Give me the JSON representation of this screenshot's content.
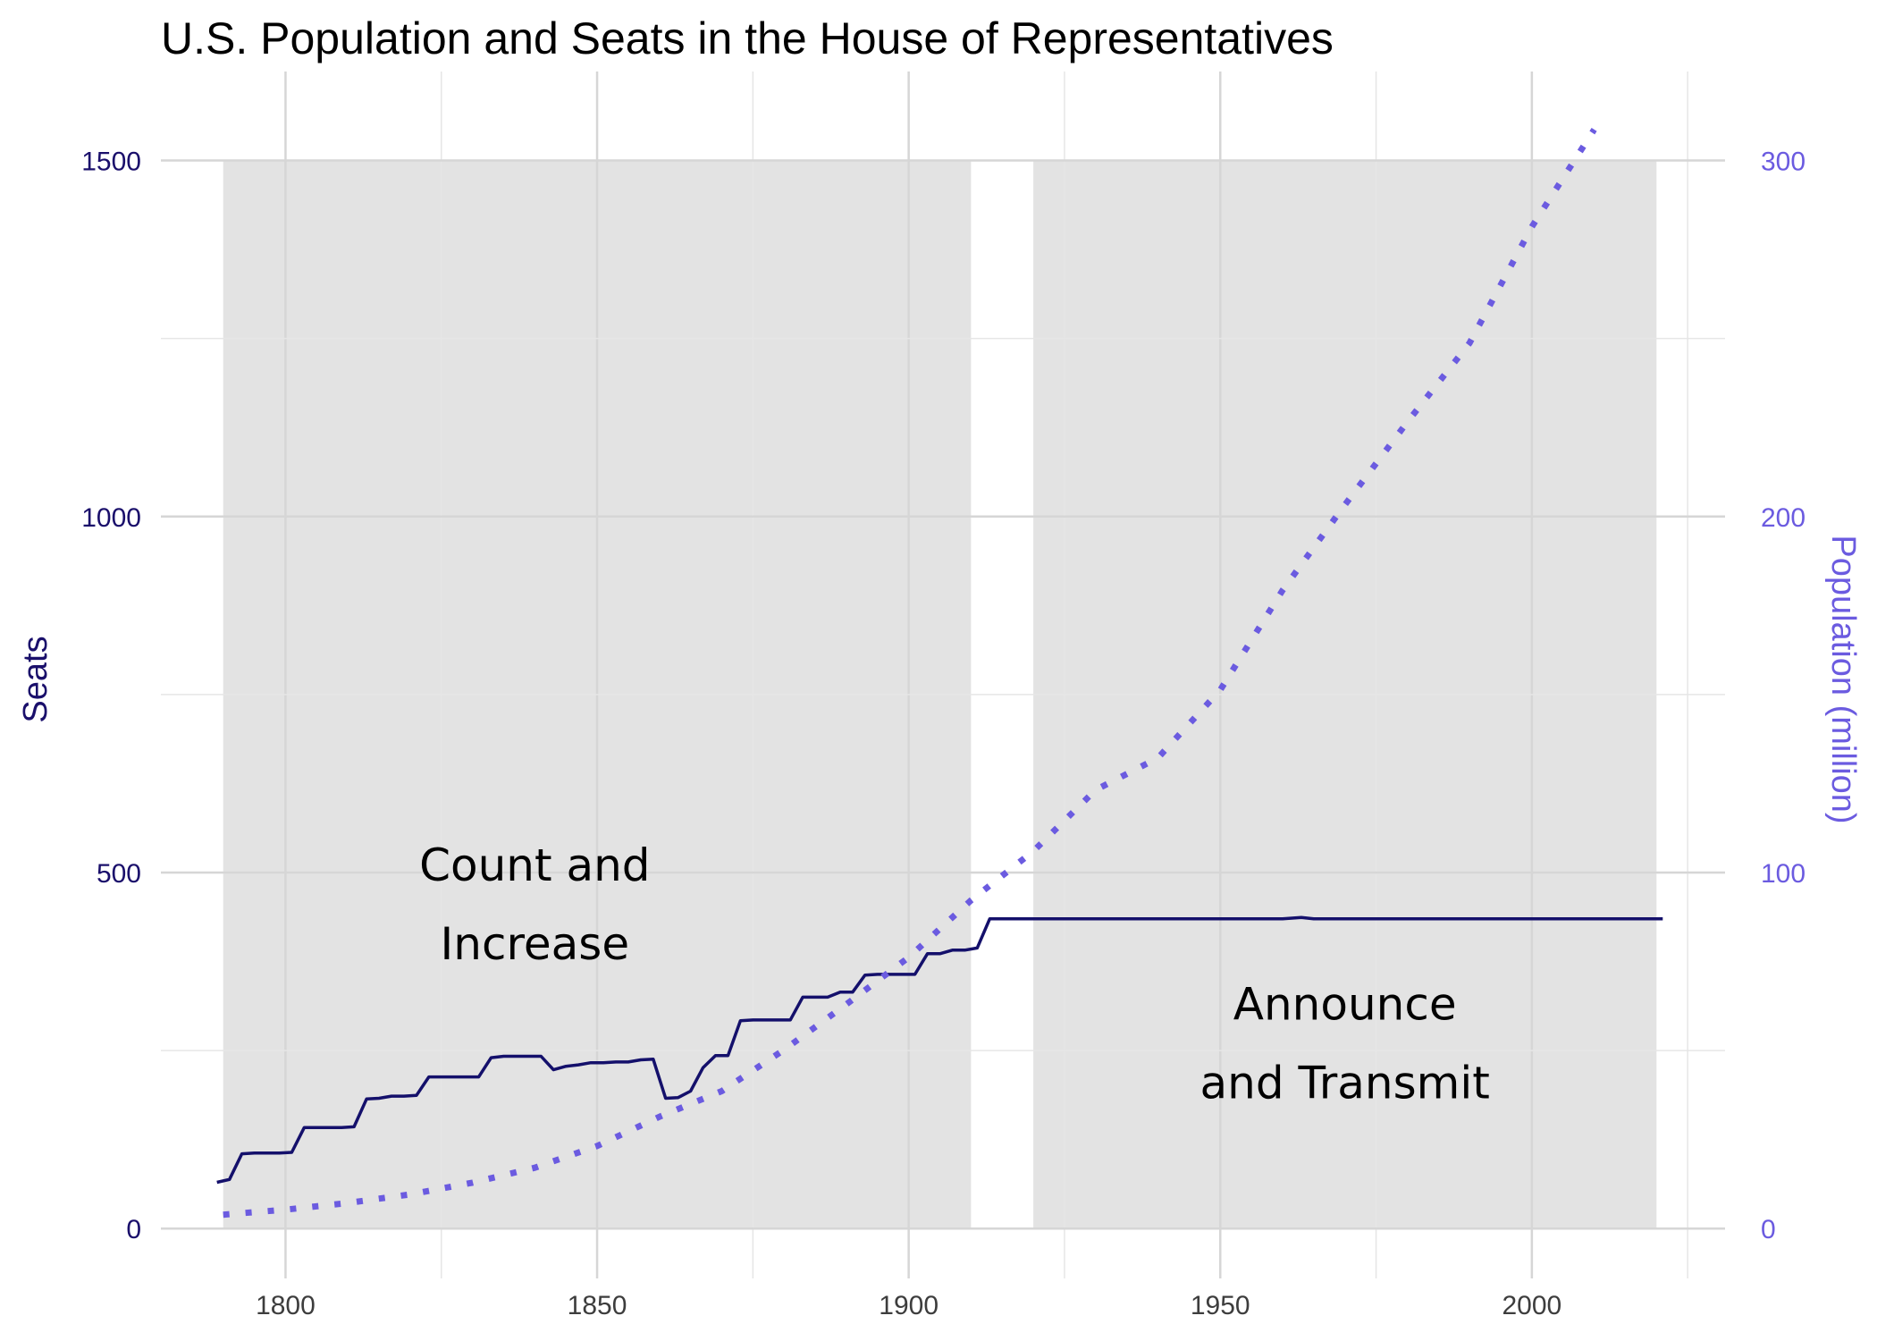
{
  "chart_data": {
    "type": "line",
    "title": "U.S. Population and Seats in the House of Representatives",
    "xlabel": "",
    "xlim": [
      1780,
      2031
    ],
    "x_ticks": [
      1800,
      1850,
      1900,
      1950,
      2000
    ],
    "y_left": {
      "label": "Seats",
      "lim": [
        -70,
        1625
      ],
      "ticks": [
        0,
        500,
        1000,
        1500
      ]
    },
    "y_right": {
      "label": "Population (million)",
      "lim": [
        -14,
        325
      ],
      "ticks": [
        0,
        100,
        200,
        300
      ]
    },
    "grid": true,
    "colors": {
      "seats": "#14106b",
      "population": "#6b5be0",
      "shade": "#e3e3e3",
      "grid_major": "#d6d6d6",
      "grid_minor": "#e6e6e6"
    },
    "shaded_periods": [
      {
        "x": [
          1790,
          1910
        ]
      },
      {
        "x": [
          1920,
          2020
        ]
      }
    ],
    "annotations": [
      {
        "lines": [
          "Count and",
          "Increase"
        ],
        "x": 1840,
        "y_top": 520
      },
      {
        "lines": [
          "Announce",
          "and Transmit"
        ],
        "x": 1970,
        "y_top": 325
      }
    ],
    "series": [
      {
        "name": "Seats",
        "axis": "left",
        "style": "solid",
        "x": [
          1789,
          1791,
          1793,
          1795,
          1797,
          1799,
          1801,
          1803,
          1805,
          1807,
          1809,
          1811,
          1813,
          1815,
          1817,
          1819,
          1821,
          1823,
          1825,
          1827,
          1829,
          1831,
          1833,
          1835,
          1837,
          1839,
          1841,
          1843,
          1845,
          1847,
          1849,
          1851,
          1853,
          1855,
          1857,
          1859,
          1861,
          1863,
          1865,
          1867,
          1869,
          1871,
          1873,
          1875,
          1877,
          1879,
          1881,
          1883,
          1885,
          1887,
          1889,
          1891,
          1893,
          1895,
          1897,
          1899,
          1901,
          1903,
          1905,
          1907,
          1909,
          1911,
          1913,
          1915,
          1960,
          1963,
          1965,
          2021
        ],
        "values": [
          65,
          69,
          105,
          106,
          106,
          106,
          107,
          142,
          142,
          142,
          142,
          143,
          182,
          183,
          186,
          186,
          187,
          213,
          213,
          213,
          213,
          213,
          240,
          242,
          242,
          242,
          242,
          223,
          228,
          230,
          233,
          233,
          234,
          234,
          237,
          238,
          183,
          184,
          193,
          226,
          243,
          243,
          292,
          293,
          293,
          293,
          293,
          325,
          325,
          325,
          332,
          332,
          356,
          357,
          357,
          357,
          357,
          386,
          386,
          391,
          391,
          394,
          435,
          435,
          435,
          437,
          435,
          435
        ]
      },
      {
        "name": "Population (million)",
        "axis": "right",
        "style": "dotted",
        "x": [
          1790,
          1800,
          1810,
          1820,
          1830,
          1840,
          1850,
          1860,
          1870,
          1880,
          1890,
          1900,
          1910,
          1920,
          1930,
          1940,
          1950,
          1960,
          1970,
          1980,
          1990,
          2000,
          2010
        ],
        "values": [
          3.9,
          5.3,
          7.2,
          9.6,
          12.9,
          17.1,
          23.2,
          31.4,
          38.6,
          50.2,
          63.0,
          76.2,
          92.2,
          106.0,
          123.2,
          132.2,
          151.3,
          179.3,
          203.3,
          226.5,
          248.7,
          281.4,
          308.7
        ]
      }
    ]
  }
}
